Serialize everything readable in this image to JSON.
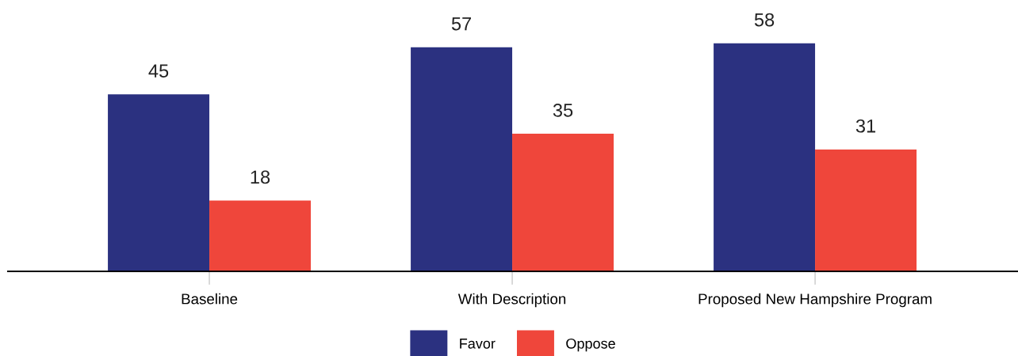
{
  "chart_data": {
    "type": "bar",
    "categories": [
      "Baseline",
      "With Description",
      "Proposed New Hampshire Program"
    ],
    "series": [
      {
        "name": "Favor",
        "color": "#2b3180",
        "values": [
          45,
          57,
          58
        ]
      },
      {
        "name": "Oppose",
        "color": "#ef463b",
        "values": [
          18,
          35,
          31
        ]
      }
    ],
    "data_labels": true,
    "legend": "bottom",
    "grid": false,
    "tick_labels": "x"
  }
}
